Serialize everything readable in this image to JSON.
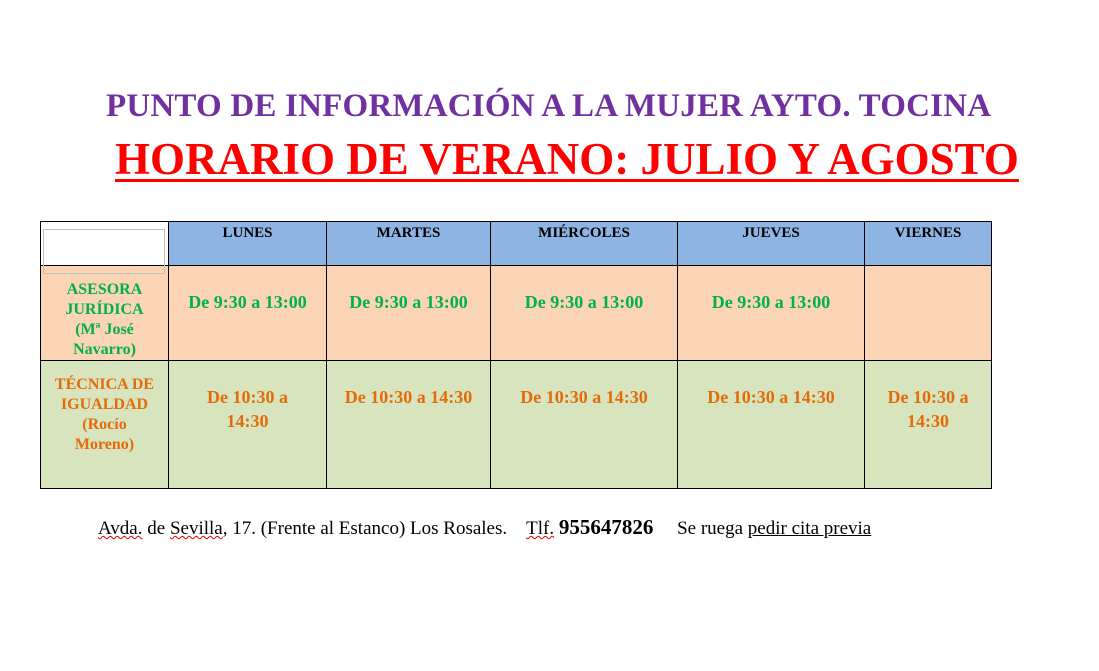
{
  "title": "PUNTO DE INFORMACIÓN A LA MUJER AYTO. TOCINA",
  "subtitle": "HORARIO DE VERANO: JULIO Y AGOSTO",
  "table": {
    "days": [
      "LUNES",
      "MARTES",
      "MIÉRCOLES",
      "JUEVES",
      "VIERNES"
    ],
    "rows": [
      {
        "label": "ASESORA JURÍDICA (Mª José Navarro)",
        "cells": [
          "De 9:30 a 13:00",
          "De 9:30 a 13:00",
          "De 9:30 a 13:00",
          "De 9:30 a 13:00",
          ""
        ],
        "color": "#00b050",
        "bg": "#fad4b4"
      },
      {
        "label": "TÉCNICA DE IGUALDAD (Rocío Moreno)",
        "cells": [
          "De 10:30 a 14:30",
          "De 10:30 a 14:30",
          "De 10:30 a 14:30",
          "De 10:30 a 14:30",
          "De 10:30 a 14:30"
        ],
        "color": "#e36c09",
        "bg": "#d7e4bd"
      }
    ]
  },
  "footer": {
    "address_1": "Avda.",
    "address_2": " de ",
    "address_3": "Sevilla",
    ", ": "",
    "address_4": ", 17. (Frente al Estanco) Los Rosales.",
    "phone_label": "Tlf.",
    "phone": "955647826",
    "note": "Se ruega ",
    "note_link": "pedir cita previa"
  }
}
